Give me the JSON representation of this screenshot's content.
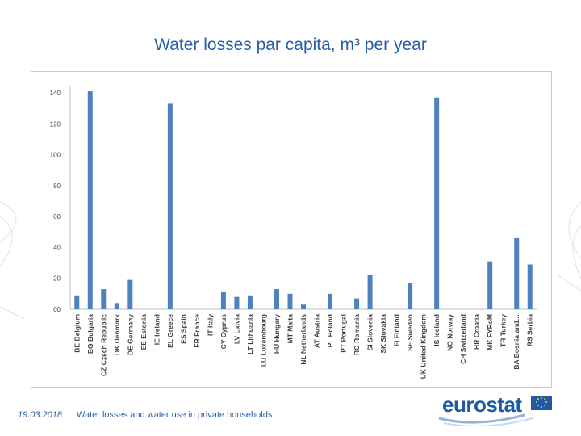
{
  "slide": {
    "title": "Water losses par capita, m³ per year",
    "date": "19.03.2018",
    "footer": "Water losses and water use in private households",
    "logo": "eurostat"
  },
  "colors": {
    "bar": "#4f81bd",
    "title": "#2a5ea6",
    "axis": "#bfbfbf"
  },
  "chart_data": {
    "type": "bar",
    "title": "",
    "xlabel": "",
    "ylabel": "",
    "ylim": [
      0,
      140
    ],
    "yticks": [
      "00",
      "20",
      "40",
      "60",
      "80",
      "100",
      "120",
      "140"
    ],
    "grid": false,
    "legend": "none",
    "categories": [
      "BE Belgium",
      "BG Bulgaria",
      "CZ Czech Republic",
      "DK Denmark",
      "DE Germany",
      "EE Estonia",
      "IE Ireland",
      "EL Greece",
      "ES Spain",
      "FR France",
      "IT Italy",
      "CY Cyprus",
      "LV Latvia",
      "LT Lithuania",
      "LU Luxembourg",
      "HU Hungary",
      "MT Malta",
      "NL Netherlands",
      "AT Austria",
      "PL Poland",
      "PT Portugal",
      "RO Romania",
      "SI Slovenia",
      "SK Slovakia",
      "FI Finland",
      "SE Sweden",
      "UK United Kingdom",
      "IS Iceland",
      "NO Norway",
      "CH Switzerland",
      "HR Croatia",
      "MK FYRoM",
      "TR Turkey",
      "BA Bosnia and…",
      "RS Serbia"
    ],
    "values": [
      9,
      141,
      13,
      4,
      19,
      0,
      0,
      133,
      0,
      0,
      0,
      11,
      8,
      9,
      0,
      13,
      10,
      3,
      0,
      10,
      0,
      7,
      22,
      0,
      0,
      17,
      0,
      137,
      0,
      0,
      0,
      31,
      0,
      46,
      29
    ]
  }
}
